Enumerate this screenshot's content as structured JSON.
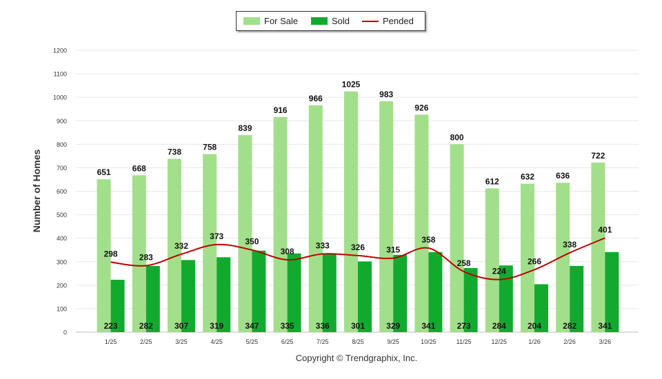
{
  "chart_data": {
    "type": "bar",
    "ylabel": "Number of Homes",
    "xlabel": "",
    "ylim": [
      0,
      1200
    ],
    "ytick_step": 100,
    "grid": true,
    "legend_position": "top-center",
    "categories": [
      "1/25",
      "2/25",
      "3/25",
      "4/25",
      "5/25",
      "6/25",
      "7/25",
      "8/25",
      "9/25",
      "10/25",
      "11/25",
      "12/25",
      "1/26",
      "2/26",
      "3/26"
    ],
    "series": [
      {
        "name": "For Sale",
        "kind": "bar",
        "color": "#a2df8a",
        "values": [
          651,
          668,
          738,
          758,
          839,
          916,
          966,
          1025,
          983,
          926,
          800,
          612,
          632,
          636,
          722
        ]
      },
      {
        "name": "Sold",
        "kind": "bar",
        "color": "#12aa2e",
        "values": [
          223,
          282,
          307,
          319,
          347,
          335,
          336,
          301,
          329,
          341,
          273,
          284,
          204,
          282,
          341
        ]
      },
      {
        "name": "Pended",
        "kind": "line",
        "color": "#c00000",
        "values": [
          298,
          283,
          332,
          373,
          350,
          308,
          333,
          326,
          315,
          358,
          258,
          224,
          266,
          338,
          401
        ]
      }
    ]
  },
  "copyright": "Copyright © Trendgraphix, Inc."
}
